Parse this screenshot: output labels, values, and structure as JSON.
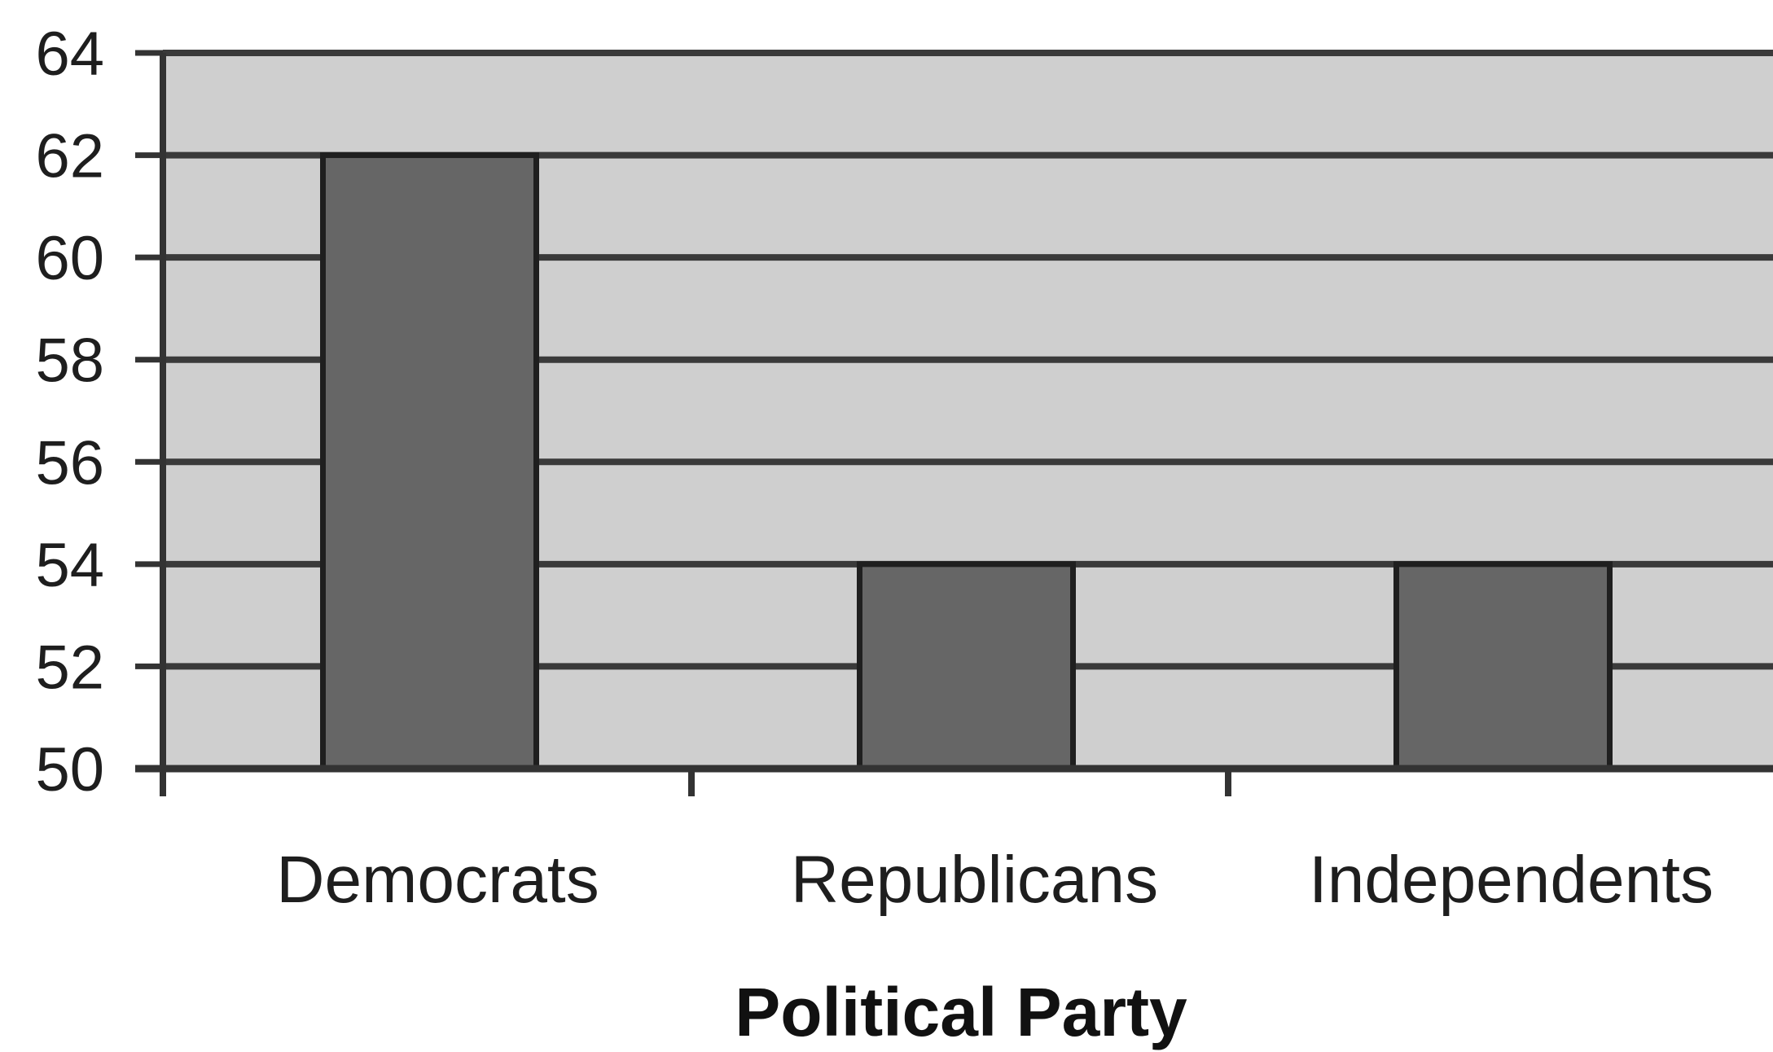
{
  "chart_data": {
    "type": "bar",
    "title": "",
    "xlabel": "Political Party",
    "ylabel": "",
    "categories": [
      "Democrats",
      "Republicans",
      "Independents"
    ],
    "values": [
      62,
      54,
      54
    ],
    "ylim": [
      50,
      64
    ],
    "yticks": [
      "50",
      "52",
      "54",
      "56",
      "58",
      "60",
      "62",
      "64"
    ],
    "grid": true,
    "legend": "none",
    "colors": {
      "plot_background": "#cfcfcf",
      "bar_fill": "#666666",
      "bar_stroke": "#1f1f1f",
      "gridline": "#3a3a3a",
      "axis": "#333333"
    }
  }
}
